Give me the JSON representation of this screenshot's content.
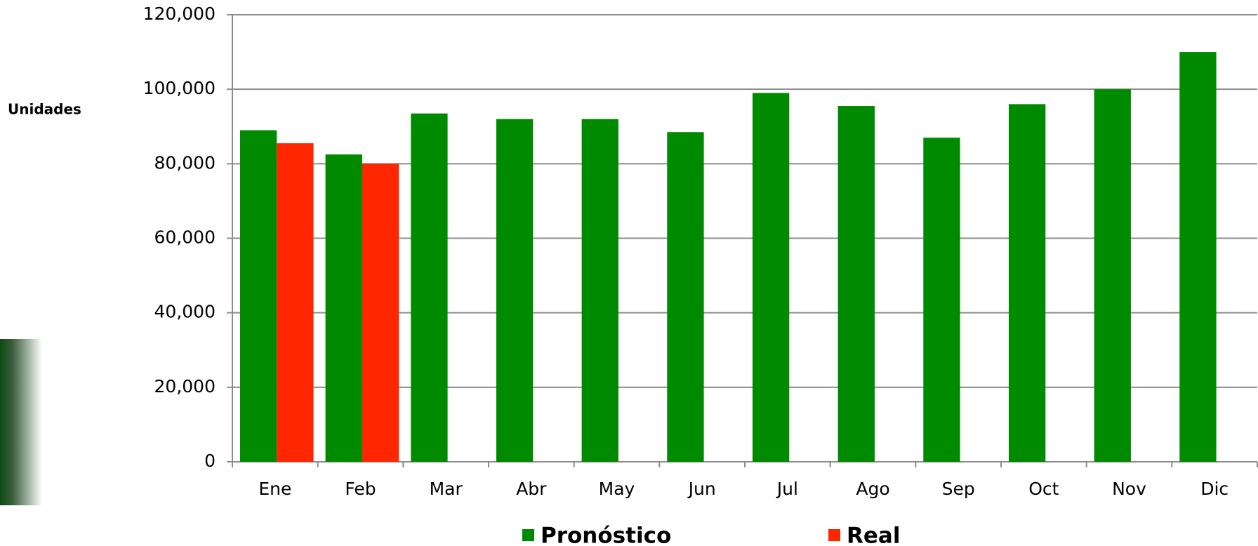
{
  "chart_data": {
    "type": "bar",
    "y_label": "Unidades",
    "categories": [
      "Ene",
      "Feb",
      "Mar",
      "Abr",
      "May",
      "Jun",
      "Jul",
      "Ago",
      "Sep",
      "Oct",
      "Nov",
      "Dic"
    ],
    "series": [
      {
        "name": "Pronóstico",
        "color": "#008a00",
        "values": [
          89000,
          82500,
          93500,
          92000,
          92000,
          88500,
          99000,
          95500,
          87000,
          96000,
          100000,
          110000
        ]
      },
      {
        "name": "Real",
        "color": "#ff2600",
        "values": [
          85500,
          80000,
          null,
          null,
          null,
          null,
          null,
          null,
          null,
          null,
          null,
          null
        ]
      }
    ],
    "ylim": [
      0,
      120000
    ],
    "yticks": [
      0,
      {
        "value": 20000,
        "label": "20,000"
      },
      {
        "value": 40000,
        "label": "40,000"
      },
      {
        "value": 60000,
        "label": "60,000"
      },
      {
        "value": 80000,
        "label": "80,000"
      },
      {
        "value": 100000,
        "label": "100,000"
      },
      {
        "value": 120000,
        "label": "120,000"
      }
    ],
    "grid": true,
    "legend": "bottom"
  }
}
